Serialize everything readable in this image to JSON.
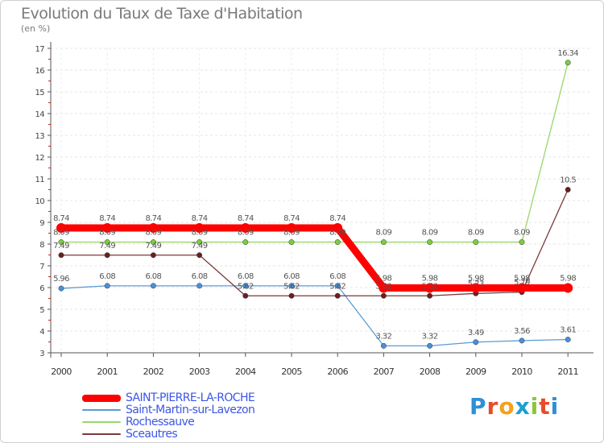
{
  "title": "Evolution du Taux de Taxe d'Habitation",
  "unit_label": "(en %)",
  "logo": {
    "text": "Proxiti",
    "letters": [
      "P",
      "r",
      "o",
      "x",
      "i",
      "t",
      "i"
    ],
    "colors": [
      "#2f8fd6",
      "#e84a2a",
      "#f3a21b",
      "#1d9fd3",
      "#8fc43a",
      "#e84a2a",
      "#2f8fd6"
    ]
  },
  "chart_data": {
    "type": "line",
    "title": "Evolution du Taux de Taxe d'Habitation",
    "ylabel": "(en %)",
    "xlabel": "",
    "ylim": [
      3,
      17
    ],
    "yticks": [
      "3",
      "4",
      "5",
      "6",
      "7",
      "8",
      "9",
      "10",
      "11",
      "12",
      "13",
      "14",
      "15",
      "16",
      "17"
    ],
    "x": [
      "2000",
      "2001",
      "2002",
      "2003",
      "2004",
      "2005",
      "2006",
      "2007",
      "2008",
      "2009",
      "2010",
      "2011"
    ],
    "series": [
      {
        "name": "Saint-Martin-sur-Lavezon",
        "color": "#5b9bd5",
        "marker_fill": "#4a90d9",
        "values": [
          5.96,
          6.08,
          6.08,
          6.08,
          6.08,
          6.08,
          6.08,
          3.32,
          3.32,
          3.49,
          3.56,
          3.61
        ],
        "labels": [
          "5.96",
          "6.08",
          "6.08",
          "6.08",
          "6.08",
          "6.08",
          "6.08",
          "3.32",
          "3.32",
          "3.49",
          "3.56",
          "3.61"
        ]
      },
      {
        "name": "Rochessauve",
        "color": "#99d66a",
        "marker_fill": "#7ccc43",
        "values": [
          8.09,
          8.09,
          8.09,
          8.09,
          8.09,
          8.09,
          8.09,
          8.09,
          8.09,
          8.09,
          8.09,
          16.34
        ],
        "labels": [
          "8.09",
          "8.09",
          "8.09",
          "8.09",
          "8.09",
          "8.09",
          "8.09",
          "8.09",
          "8.09",
          "8.09",
          "8.09",
          "16.34"
        ]
      },
      {
        "name": "Sceautres",
        "color": "#7a3a3a",
        "marker_fill": "#6b1f1f",
        "values": [
          7.49,
          7.49,
          7.49,
          7.49,
          5.62,
          5.62,
          5.62,
          5.62,
          5.62,
          5.73,
          5.79,
          10.5
        ],
        "labels": [
          "7.49",
          "7.49",
          "7.49",
          "7.49",
          "5.62",
          "5.62",
          "5.62",
          "5.62",
          "5.62",
          "5.73",
          "5.79",
          "10.5"
        ]
      },
      {
        "name": "SAINT-PIERRE-LA-ROCHE",
        "color": "#ff0000",
        "marker_fill": "#ff0000",
        "values": [
          8.74,
          8.74,
          8.74,
          8.74,
          8.74,
          8.74,
          8.74,
          5.98,
          5.98,
          5.98,
          5.98,
          5.98
        ],
        "labels": [
          "8.74",
          "8.74",
          "8.74",
          "8.74",
          "8.74",
          "8.74",
          "8.74",
          "5.98",
          "5.98",
          "5.98",
          "5.98",
          "5.98"
        ]
      }
    ],
    "legend": [
      {
        "name": "SAINT-PIERRE-LA-ROCHE",
        "color": "#ff0000"
      },
      {
        "name": "Saint-Martin-sur-Lavezon",
        "color": "#5b9bd5"
      },
      {
        "name": "Rochessauve",
        "color": "#99d66a"
      },
      {
        "name": "Sceautres",
        "color": "#7a3a3a"
      }
    ]
  }
}
